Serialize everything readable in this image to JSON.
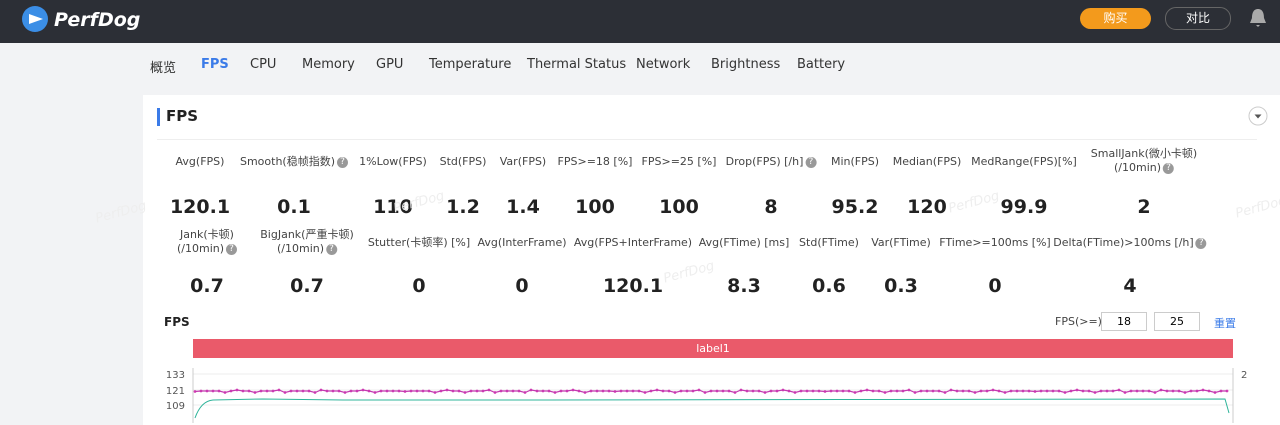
{
  "header": {
    "logo": "PerfDog",
    "buy": "购买",
    "compare": "对比"
  },
  "tabs": [
    "概览",
    "FPS",
    "CPU",
    "Memory",
    "GPU",
    "Temperature",
    "Thermal Status",
    "Network",
    "Brightness",
    "Battery"
  ],
  "active_tab": 1,
  "panel": {
    "title": "FPS",
    "watermark": "PerfDog"
  },
  "metrics_row1": [
    {
      "label": "Avg(FPS)",
      "value": "120.1"
    },
    {
      "label": "Smooth(稳帧指数)",
      "value": "0.1",
      "help": true
    },
    {
      "label": "1%Low(FPS)",
      "value": "110"
    },
    {
      "label": "Std(FPS)",
      "value": "1.2"
    },
    {
      "label": "Var(FPS)",
      "value": "1.4"
    },
    {
      "label": "FPS>=18 [%]",
      "value": "100"
    },
    {
      "label": "FPS>=25 [%]",
      "value": "100"
    },
    {
      "label": "Drop(FPS) [/h]",
      "value": "8",
      "help": true
    },
    {
      "label": "Min(FPS)",
      "value": "95.2"
    },
    {
      "label": "Median(FPS)",
      "value": "120"
    },
    {
      "label": "MedRange(FPS)[%]",
      "value": "99.9"
    },
    {
      "label": "SmallJank(微小卡顿)",
      "sub": "(/10min)",
      "value": "2",
      "help": true
    }
  ],
  "metrics_row2": [
    {
      "label": "Jank(卡顿)",
      "sub": "(/10min)",
      "value": "0.7",
      "help": true
    },
    {
      "label": "BigJank(严重卡顿)",
      "sub": "(/10min)",
      "value": "0.7",
      "help": true
    },
    {
      "label": "Stutter(卡顿率) [%]",
      "value": "0"
    },
    {
      "label": "Avg(InterFrame)",
      "value": "0"
    },
    {
      "label": "Avg(FPS+InterFrame)",
      "value": "120.1"
    },
    {
      "label": "Avg(FTime) [ms]",
      "value": "8.3"
    },
    {
      "label": "Std(FTime)",
      "value": "0.6"
    },
    {
      "label": "Var(FTime)",
      "value": "0.3"
    },
    {
      "label": "FTime>=100ms [%]",
      "value": "0"
    },
    {
      "label": "Delta(FTime)>100ms [/h]",
      "value": "4",
      "help": true
    }
  ],
  "chart": {
    "title": "FPS",
    "threshold_label": "FPS(>=)",
    "threshold1": "18",
    "threshold2": "25",
    "reset": "重置",
    "band_label": "label1",
    "yticks": [
      "133",
      "121",
      "109"
    ],
    "y2ticks": [
      "2"
    ]
  }
}
